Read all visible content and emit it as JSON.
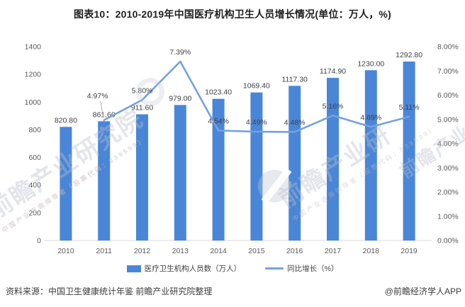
{
  "title": "图表10：2010-2019年中国医疗机构卫生人员增长情况(单位：万人，%)",
  "legend": {
    "bar_label": "医疗卫生机构人员数（万人）",
    "line_label": "同比增长（%）"
  },
  "footer": {
    "source": "资料来源：中国卫生健康统计年鉴 前瞻产业研究院整理",
    "credit": "@前瞻经济学人APP"
  },
  "watermark": {
    "brand": "前瞻产业研究院",
    "brand_short": "前瞻产业研",
    "tagline": "中国产业咨询领导者（股票代码：839599）"
  },
  "colors": {
    "bar": "#4A86D8",
    "line": "#74A1E0",
    "axis_text": "#595959",
    "label_text": "#3f3f3f",
    "baseline": "#D9D9D9",
    "leader": "#A6A6A6"
  },
  "chart_data": {
    "type": "bar",
    "subtype": "bar+line combo, dual axis",
    "title": "图表10：2010-2019年中国医疗机构卫生人员增长情况(单位：万人，%)",
    "categories": [
      "2010",
      "2011",
      "2012",
      "2013",
      "2014",
      "2015",
      "2016",
      "2017",
      "2018",
      "2019"
    ],
    "series": [
      {
        "name": "医疗卫生机构人员数（万人）",
        "type": "bar",
        "axis": "left",
        "values": [
          820.8,
          861.6,
          911.6,
          979.0,
          1023.4,
          1069.4,
          1117.3,
          1174.9,
          1230.0,
          1292.8
        ],
        "labels": [
          "820.80",
          "861.60",
          "911.60",
          "979.00",
          "1023.40",
          "1069.40",
          "1117.30",
          "1174.90",
          "1230.00",
          "1292.80"
        ]
      },
      {
        "name": "同比增长（%）",
        "type": "line",
        "axis": "right",
        "values": [
          null,
          4.97,
          5.8,
          7.39,
          4.54,
          4.49,
          4.48,
          5.16,
          4.69,
          5.11
        ],
        "labels": [
          null,
          "4.97%",
          "5.80%",
          "7.39%",
          "4.54%",
          "4.49%",
          "4.48%",
          "5.16%",
          "4.69%",
          "5.11%"
        ]
      }
    ],
    "left_axis": {
      "min": 0,
      "max": 1400,
      "step": 200,
      "ticks": [
        "0",
        "200",
        "400",
        "600",
        "800",
        "1000",
        "1200",
        "1400"
      ]
    },
    "right_axis": {
      "min": 0,
      "max": 8,
      "step": 1,
      "ticks": [
        "0.00%",
        "1.00%",
        "2.00%",
        "3.00%",
        "4.00%",
        "5.00%",
        "6.00%",
        "7.00%",
        "8.00%"
      ]
    },
    "grid": false,
    "legend_position": "bottom"
  }
}
